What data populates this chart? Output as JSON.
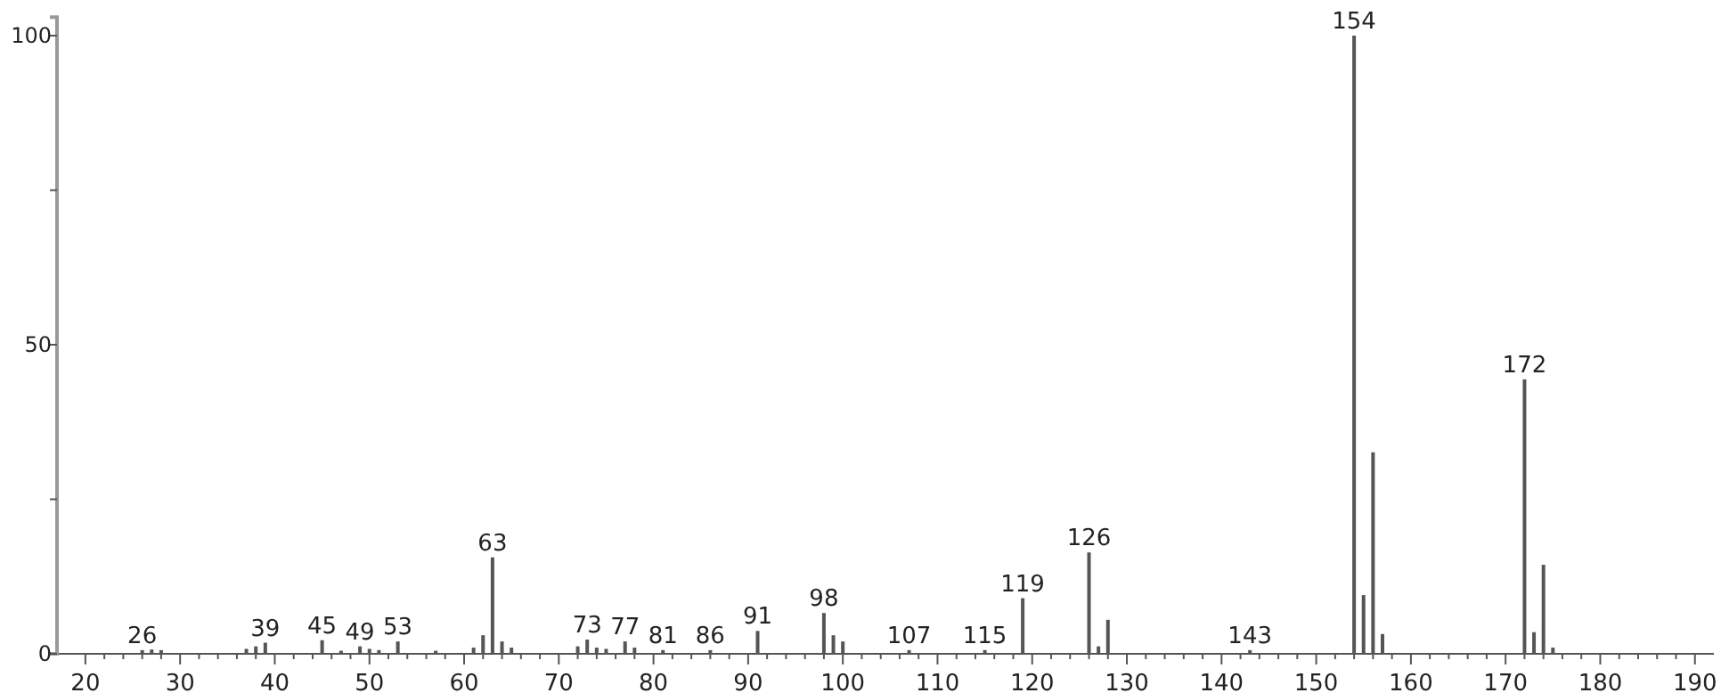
{
  "chart_data": {
    "type": "bar",
    "color": "#555555",
    "x": [
      26,
      27,
      28,
      37,
      38,
      39,
      45,
      47,
      49,
      50,
      51,
      53,
      57,
      61,
      62,
      63,
      64,
      65,
      72,
      73,
      74,
      75,
      77,
      78,
      81,
      86,
      91,
      98,
      99,
      100,
      107,
      115,
      119,
      126,
      127,
      128,
      143,
      154,
      155,
      156,
      157,
      172,
      173,
      174,
      175
    ],
    "values": [
      0.6,
      0.7,
      0.6,
      0.8,
      1.2,
      1.8,
      2.2,
      0.5,
      1.2,
      0.8,
      0.6,
      2,
      0.5,
      1,
      3,
      15.6,
      2,
      1,
      1.2,
      2.3,
      1,
      0.8,
      2,
      1,
      0.6,
      0.6,
      3.7,
      6.6,
      3,
      2,
      0.6,
      0.6,
      9,
      16.4,
      1.2,
      5.5,
      0.6,
      100,
      9.5,
      32.6,
      3.2,
      44.4,
      3.5,
      14.4,
      1
    ],
    "xlim": [
      17,
      192
    ],
    "xticks": [
      20,
      {
        "value": 22,
        "label": null
      },
      {
        "value": 24,
        "label": null
      },
      {
        "value": 26,
        "label": null
      },
      {
        "value": 28,
        "label": null
      },
      30,
      {
        "value": 32,
        "label": null
      },
      {
        "value": 34,
        "label": null
      },
      {
        "value": 36,
        "label": null
      },
      {
        "value": 38,
        "label": null
      },
      40,
      {
        "value": 42,
        "label": null
      },
      {
        "value": 44,
        "label": null
      },
      {
        "value": 46,
        "label": null
      },
      {
        "value": 48,
        "label": null
      },
      50,
      {
        "value": 52,
        "label": null
      },
      {
        "value": 54,
        "label": null
      },
      {
        "value": 56,
        "label": null
      },
      {
        "value": 58,
        "label": null
      },
      60,
      {
        "value": 62,
        "label": null
      },
      {
        "value": 64,
        "label": null
      },
      {
        "value": 66,
        "label": null
      },
      {
        "value": 68,
        "label": null
      },
      70,
      {
        "value": 72,
        "label": null
      },
      {
        "value": 74,
        "label": null
      },
      {
        "value": 76,
        "label": null
      },
      {
        "value": 78,
        "label": null
      },
      80,
      {
        "value": 82,
        "label": null
      },
      {
        "value": 84,
        "label": null
      },
      {
        "value": 86,
        "label": null
      },
      {
        "value": 88,
        "label": null
      },
      90,
      {
        "value": 92,
        "label": null
      },
      {
        "value": 94,
        "label": null
      },
      {
        "value": 96,
        "label": null
      },
      {
        "value": 98,
        "label": null
      },
      100,
      {
        "value": 102,
        "label": null
      },
      {
        "value": 104,
        "label": null
      },
      {
        "value": 106,
        "label": null
      },
      {
        "value": 108,
        "label": null
      },
      110,
      {
        "value": 112,
        "label": null
      },
      {
        "value": 114,
        "label": null
      },
      {
        "value": 116,
        "label": null
      },
      {
        "value": 118,
        "label": null
      },
      120,
      {
        "value": 122,
        "label": null
      },
      {
        "value": 124,
        "label": null
      },
      {
        "value": 126,
        "label": null
      },
      {
        "value": 128,
        "label": null
      },
      130,
      {
        "value": 132,
        "label": null
      },
      {
        "value": 134,
        "label": null
      },
      {
        "value": 136,
        "label": null
      },
      {
        "value": 138,
        "label": null
      },
      140,
      {
        "value": 142,
        "label": null
      },
      {
        "value": 144,
        "label": null
      },
      {
        "value": 146,
        "label": null
      },
      {
        "value": 148,
        "label": null
      },
      150,
      {
        "value": 152,
        "label": null
      },
      {
        "value": 154,
        "label": null
      },
      {
        "value": 156,
        "label": null
      },
      {
        "value": 158,
        "label": null
      },
      160,
      {
        "value": 162,
        "label": null
      },
      {
        "value": 164,
        "label": null
      },
      {
        "value": 166,
        "label": null
      },
      {
        "value": 168,
        "label": null
      },
      170,
      {
        "value": 172,
        "label": null
      },
      {
        "value": 174,
        "label": null
      },
      {
        "value": 176,
        "label": null
      },
      {
        "value": 178,
        "label": null
      },
      180,
      {
        "value": 182,
        "label": null
      },
      {
        "value": 184,
        "label": null
      },
      {
        "value": 186,
        "label": null
      },
      {
        "value": 188,
        "label": null
      },
      190
    ],
    "ylim": [
      0,
      103
    ],
    "yticks": [
      0,
      {
        "value": 25,
        "label": null
      },
      50,
      {
        "value": 75,
        "label": null
      },
      100
    ],
    "grid": false,
    "annotations": [
      {
        "text": "26",
        "x": 26,
        "y": 0.6
      },
      {
        "text": "39",
        "x": 39,
        "y": 1.8
      },
      {
        "text": "45",
        "x": 45,
        "y": 2.2
      },
      {
        "text": "49",
        "x": 49,
        "y": 1.2
      },
      {
        "text": "53",
        "x": 53,
        "y": 2
      },
      {
        "text": "63",
        "x": 63,
        "y": 15.6
      },
      {
        "text": "73",
        "x": 73,
        "y": 2.3
      },
      {
        "text": "77",
        "x": 77,
        "y": 2
      },
      {
        "text": "81",
        "x": 81,
        "y": 0.6
      },
      {
        "text": "86",
        "x": 86,
        "y": 0.6
      },
      {
        "text": "91",
        "x": 91,
        "y": 3.7
      },
      {
        "text": "98",
        "x": 98,
        "y": 6.6
      },
      {
        "text": "107",
        "x": 107,
        "y": 0.6
      },
      {
        "text": "115",
        "x": 115,
        "y": 0.6
      },
      {
        "text": "119",
        "x": 119,
        "y": 9
      },
      {
        "text": "126",
        "x": 126,
        "y": 16.4
      },
      {
        "text": "143",
        "x": 143,
        "y": 0.6
      },
      {
        "text": "154",
        "x": 154,
        "y": 100
      },
      {
        "text": "172",
        "x": 172,
        "y": 44.4
      }
    ]
  }
}
